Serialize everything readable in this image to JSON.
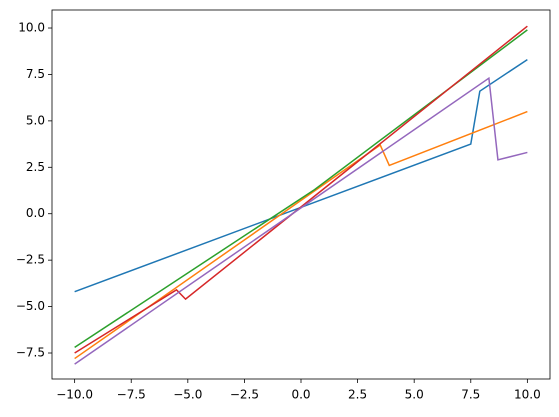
{
  "chart_data": {
    "type": "line",
    "xlim": [
      -11,
      11
    ],
    "ylim": [
      -8.9,
      10.97
    ],
    "xticks": [
      {
        "value": -10,
        "label": "−10.0"
      },
      {
        "value": -7.5,
        "label": "−7.5"
      },
      {
        "value": -5,
        "label": "−5.0"
      },
      {
        "value": -2.5,
        "label": "−2.5"
      },
      {
        "value": 0,
        "label": "0.0"
      },
      {
        "value": 2.5,
        "label": "2.5"
      },
      {
        "value": 5,
        "label": "5.0"
      },
      {
        "value": 7.5,
        "label": "7.5"
      },
      {
        "value": 10,
        "label": "10.0"
      }
    ],
    "yticks": [
      {
        "value": -7.5,
        "label": "−7.5"
      },
      {
        "value": -5,
        "label": "−5.0"
      },
      {
        "value": -2.5,
        "label": "−2.5"
      },
      {
        "value": 0,
        "label": "0.0"
      },
      {
        "value": 2.5,
        "label": "2.5"
      },
      {
        "value": 5,
        "label": "5.0"
      },
      {
        "value": 7.5,
        "label": "7.5"
      },
      {
        "value": 10,
        "label": "10.0"
      }
    ],
    "series": [
      {
        "color": "#1f77b4",
        "x": [
          -10,
          7.5,
          7.9,
          10
        ],
        "values": [
          -4.2,
          3.75,
          6.6,
          8.3
        ]
      },
      {
        "color": "#ff7f0e",
        "x": [
          -10,
          3.5,
          3.9,
          10
        ],
        "values": [
          -7.8,
          3.7,
          2.6,
          5.5
        ]
      },
      {
        "color": "#2ca02c",
        "x": [
          -10,
          0.6,
          10
        ],
        "values": [
          -7.2,
          1.3,
          9.9
        ]
      },
      {
        "color": "#d62728",
        "x": [
          -10,
          -5.5,
          -5.1,
          10
        ],
        "values": [
          -7.5,
          -4.1,
          -4.6,
          10.1
        ]
      },
      {
        "color": "#9467bd",
        "x": [
          -10,
          8.3,
          8.7,
          10
        ],
        "values": [
          -8.1,
          7.3,
          2.9,
          3.3
        ]
      }
    ]
  }
}
